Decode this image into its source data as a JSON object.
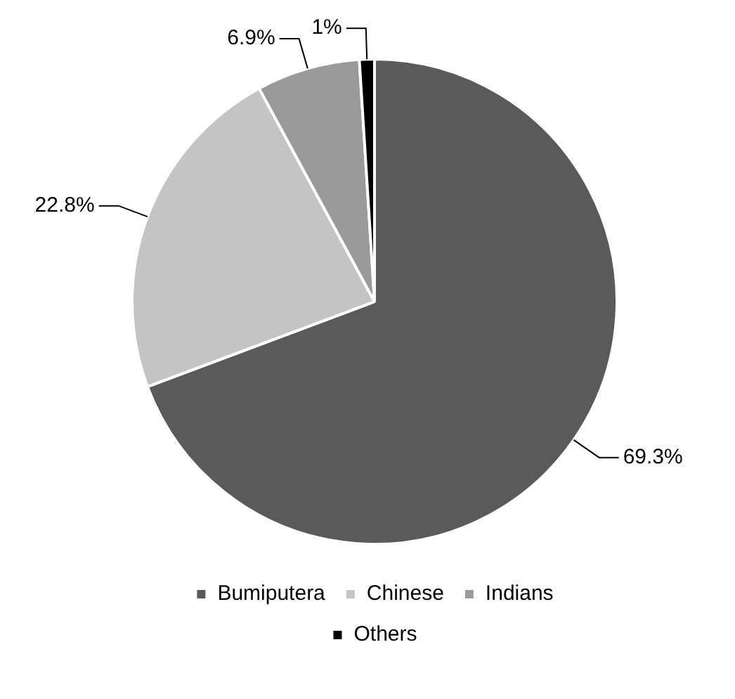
{
  "chart_data": {
    "type": "pie",
    "categories": [
      "Bumiputera",
      "Chinese",
      "Indians",
      "Others"
    ],
    "values": [
      69.3,
      22.8,
      6.9,
      1
    ],
    "colors": [
      "#5a5a5a",
      "#c4c4c4",
      "#9a9a9a",
      "#000000"
    ],
    "value_labels": [
      "69.3%",
      "22.8%",
      "6.9%",
      "1%"
    ],
    "legend": "bottom"
  }
}
